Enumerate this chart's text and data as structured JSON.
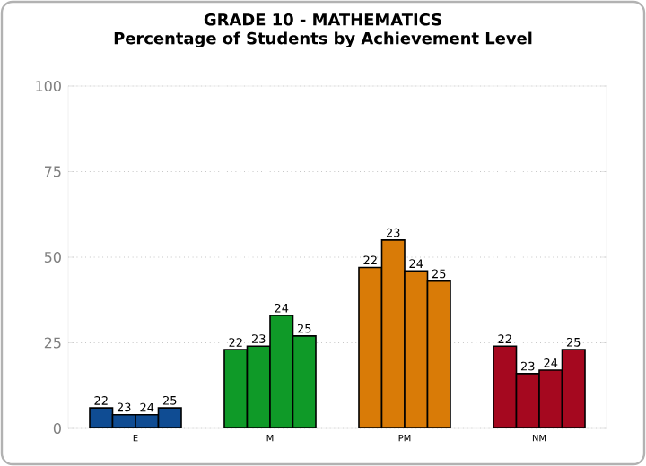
{
  "chart_data": {
    "type": "bar",
    "title": "GRADE 10 - MATHEMATICS",
    "subtitle": "Percentage of Students by Achievement Level",
    "categories": [
      "E",
      "M",
      "PM",
      "NM"
    ],
    "series": [
      {
        "name": "22",
        "colors": [
          "#0f4c93",
          "#0f9a28",
          "#d97b07",
          "#a5081f"
        ],
        "values": [
          6,
          23,
          47,
          24
        ]
      },
      {
        "name": "23",
        "colors": [
          "#0f4c93",
          "#0f9a28",
          "#d97b07",
          "#a5081f"
        ],
        "values": [
          4,
          24,
          55,
          16
        ]
      },
      {
        "name": "24",
        "colors": [
          "#0f4c93",
          "#0f9a28",
          "#d97b07",
          "#a5081f"
        ],
        "values": [
          4,
          33,
          46,
          17
        ]
      },
      {
        "name": "25",
        "colors": [
          "#0f4c93",
          "#0f9a28",
          "#d97b07",
          "#a5081f"
        ],
        "values": [
          6,
          27,
          43,
          23
        ]
      }
    ],
    "ylim": [
      0,
      100
    ],
    "yticks": [
      0,
      25,
      50,
      75,
      100
    ],
    "grid": "y"
  }
}
